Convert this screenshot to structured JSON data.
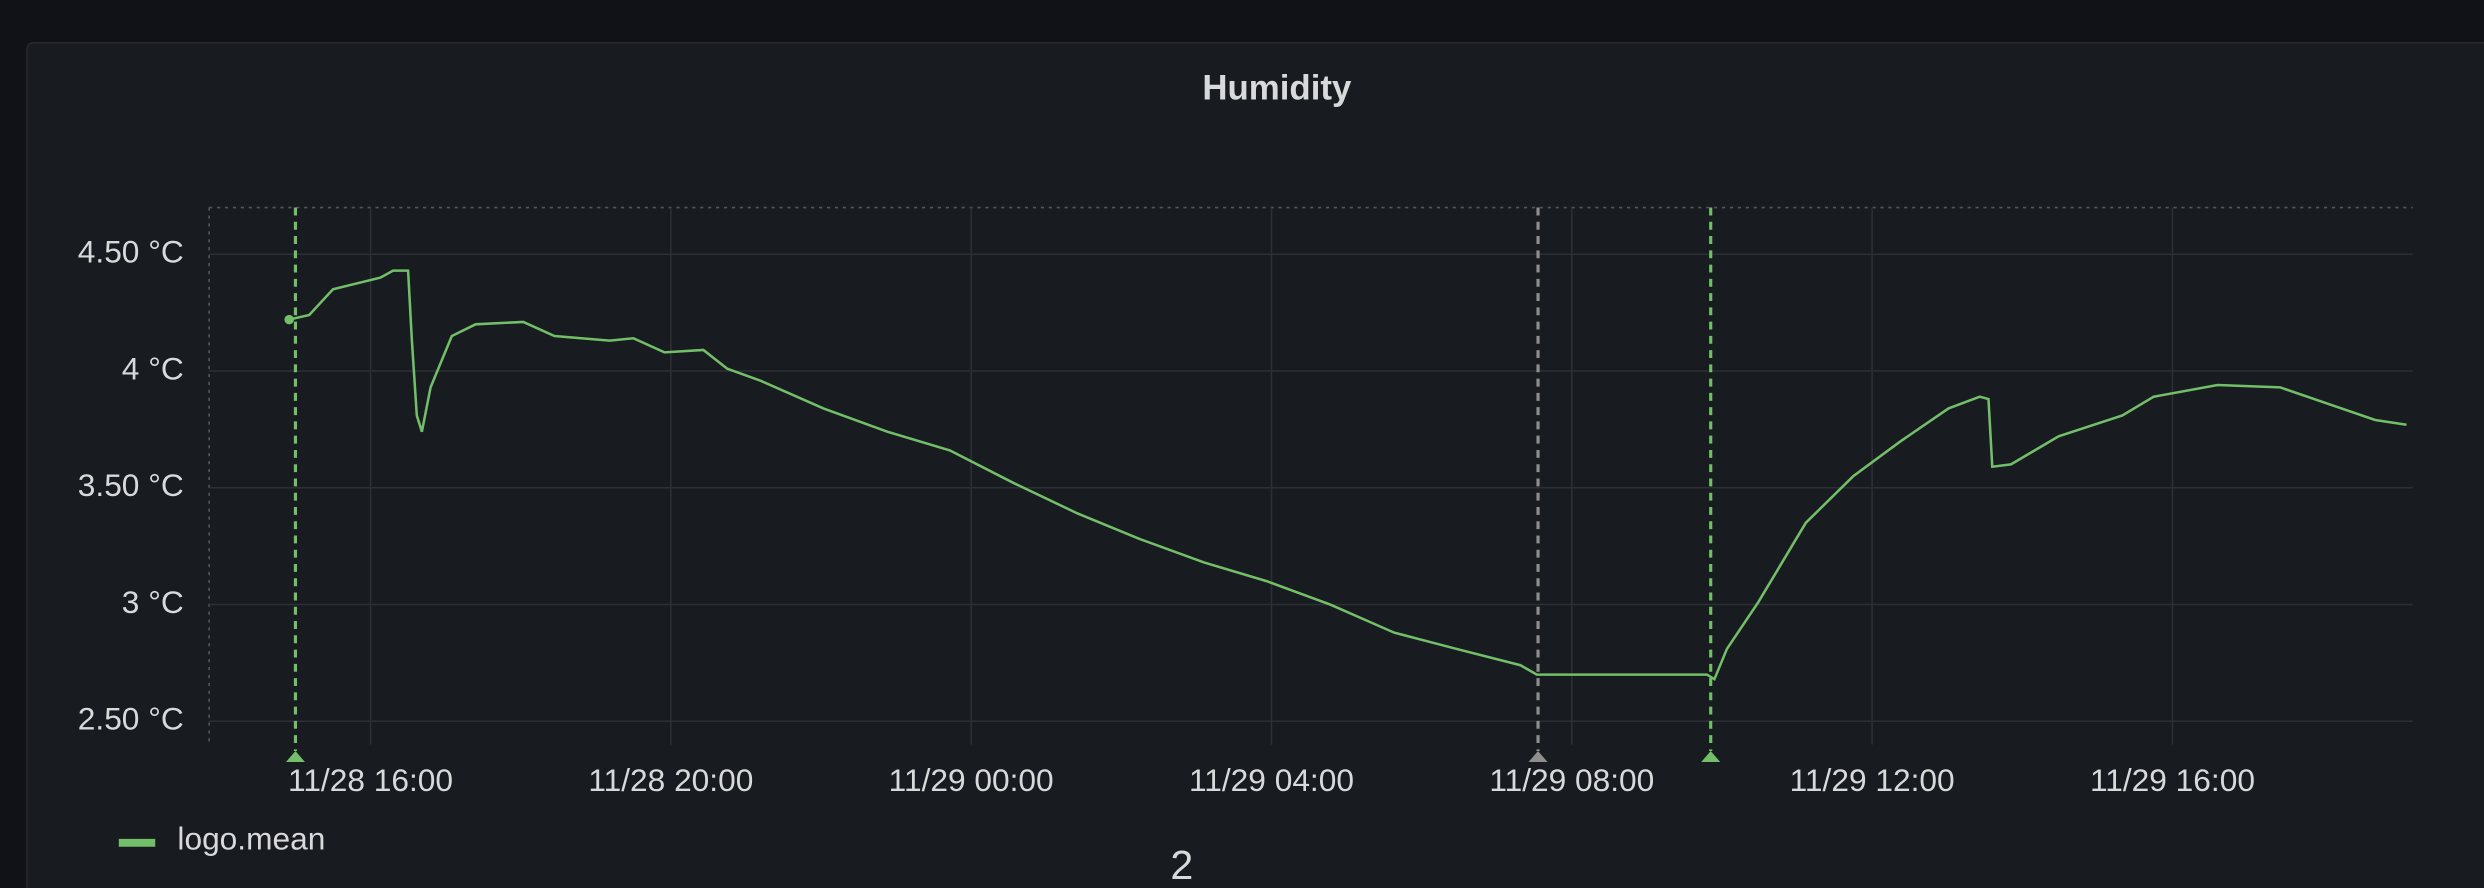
{
  "chart_data": {
    "type": "line",
    "title": "Humidity",
    "x": [
      "11/28 14:55",
      "11/28 15:11",
      "11/28 15:30",
      "11/28 16:08",
      "11/28 16:18",
      "11/28 16:30",
      "11/28 16:33",
      "11/28 16:37",
      "11/28 16:41",
      "11/28 16:48",
      "11/28 17:05",
      "11/28 17:24",
      "11/28 18:02",
      "11/28 18:27",
      "11/28 19:11",
      "11/28 19:30",
      "11/28 19:55",
      "11/28 20:26",
      "11/28 20:45",
      "11/28 21:11",
      "11/28 22:02",
      "11/28 22:53",
      "11/28 23:43",
      "11/29 00:34",
      "11/29 01:25",
      "11/29 02:15",
      "11/29 03:06",
      "11/29 03:56",
      "11/29 04:47",
      "11/29 05:38",
      "11/29 06:28",
      "11/29 07:19",
      "11/29 07:32",
      "11/29 09:48",
      "11/29 09:54",
      "11/29 10:04",
      "11/29 10:29",
      "11/29 11:07",
      "11/29 11:45",
      "11/29 12:23",
      "11/29 13:01",
      "11/29 13:26",
      "11/29 13:33",
      "11/29 13:36",
      "11/29 13:51",
      "11/29 14:29",
      "11/29 15:20",
      "11/29 15:45",
      "11/29 16:36",
      "11/29 17:26",
      "11/29 18:04",
      "11/29 18:42",
      "11/29 19:07"
    ],
    "series": [
      {
        "name": "logo.mean",
        "color": "#73bf69",
        "values": [
          4.22,
          4.24,
          4.35,
          4.4,
          4.43,
          4.43,
          4.13,
          3.81,
          3.74,
          3.93,
          4.15,
          4.2,
          4.21,
          4.15,
          4.13,
          4.14,
          4.08,
          4.09,
          4.01,
          3.96,
          3.84,
          3.74,
          3.66,
          3.52,
          3.39,
          3.28,
          3.18,
          3.1,
          3.0,
          2.88,
          2.81,
          2.74,
          2.7,
          2.7,
          2.68,
          2.81,
          3.01,
          3.35,
          3.55,
          3.7,
          3.84,
          3.89,
          3.88,
          3.59,
          3.6,
          3.72,
          3.81,
          3.89,
          3.94,
          3.93,
          3.86,
          3.79,
          3.77
        ]
      }
    ],
    "xlim": [
      "11/28 13:51",
      "11/29 19:12"
    ],
    "xticks": [
      "11/28 16:00",
      "11/28 20:00",
      "11/29 00:00",
      "11/29 04:00",
      "11/29 08:00",
      "11/29 12:00",
      "11/29 16:00"
    ],
    "ylim": [
      2.4,
      4.7
    ],
    "yticks": [
      {
        "value": 2.5,
        "label": "2.50 °C"
      },
      {
        "value": 3,
        "label": "3 °C"
      },
      {
        "value": 3.5,
        "label": "3.50 °C"
      },
      {
        "value": 4,
        "label": "4 °C"
      },
      {
        "value": 4.5,
        "label": "4.50 °C"
      }
    ],
    "grid": true,
    "annotations": [
      {
        "x": "11/28 15:00",
        "color": "#73bf69"
      },
      {
        "x": "11/29 07:33",
        "color": "#8e8e8e"
      },
      {
        "x": "11/29 09:51",
        "color": "#73bf69"
      }
    ],
    "page_number": "2"
  }
}
